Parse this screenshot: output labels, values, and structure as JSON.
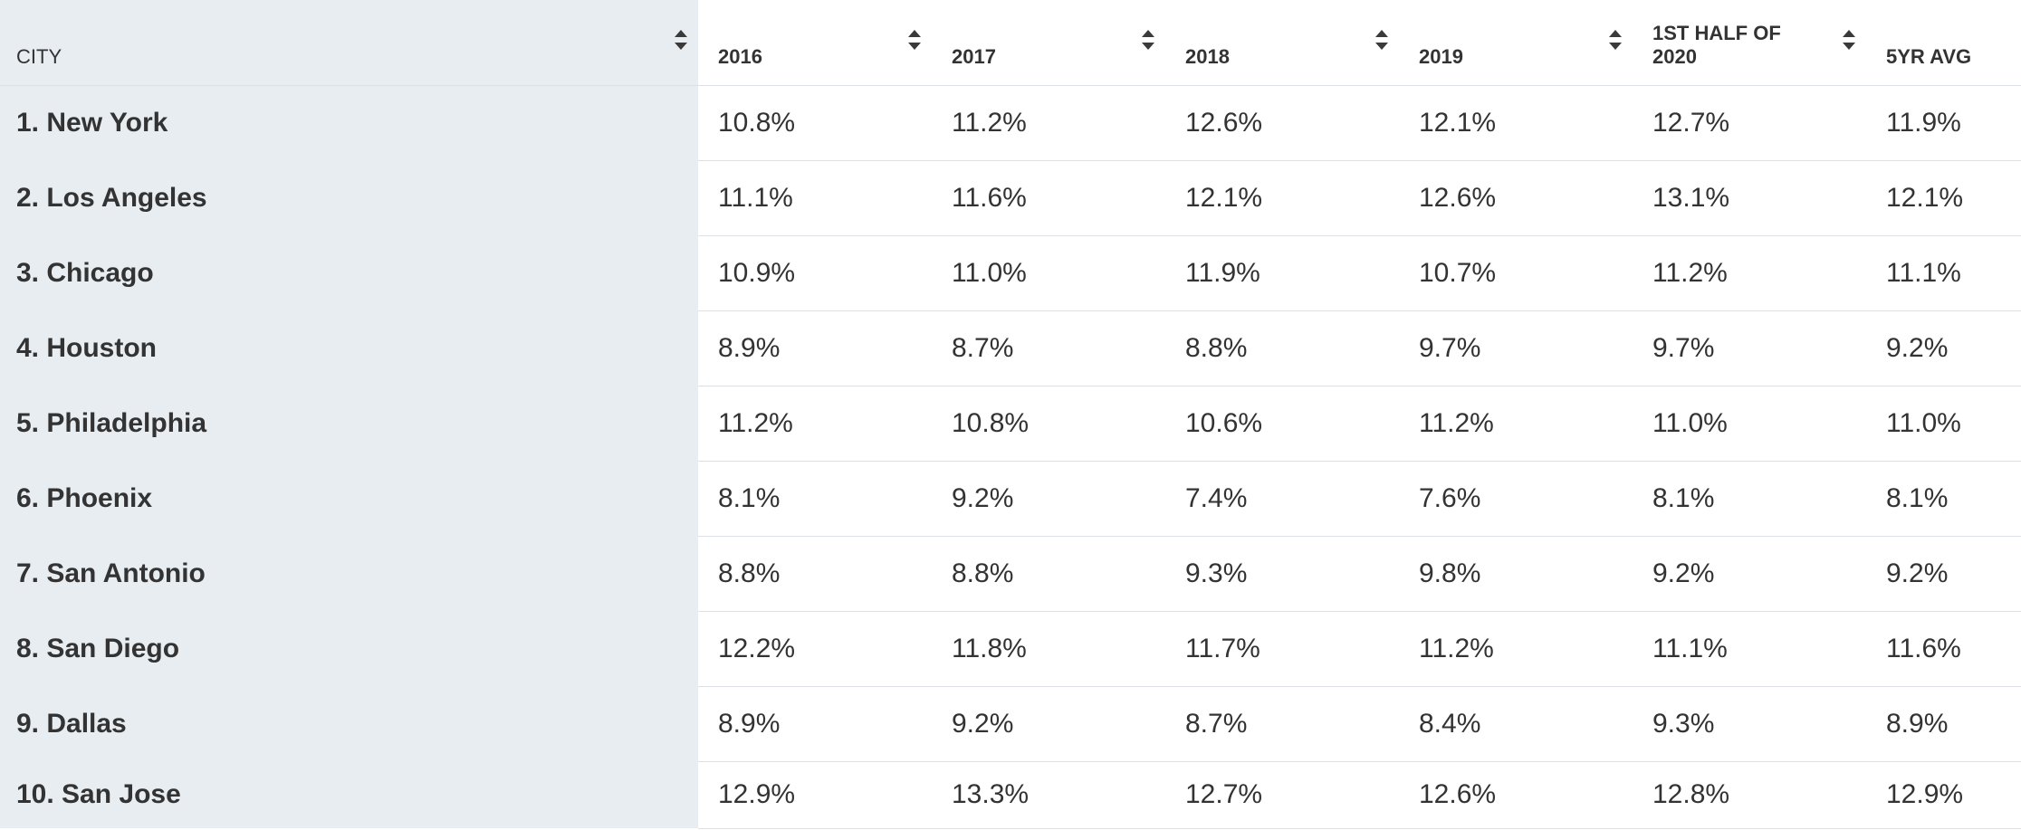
{
  "table": {
    "headers": [
      "CITY",
      "2016",
      "2017",
      "2018",
      "2019",
      "1ST HALF OF 2020",
      "5YR AVG"
    ],
    "rows": [
      {
        "city": "1. New York",
        "values": [
          "10.8%",
          "11.2%",
          "12.6%",
          "12.1%",
          "12.7%",
          "11.9%"
        ]
      },
      {
        "city": "2. Los Angeles",
        "values": [
          "11.1%",
          "11.6%",
          "12.1%",
          "12.6%",
          "13.1%",
          "12.1%"
        ]
      },
      {
        "city": "3. Chicago",
        "values": [
          "10.9%",
          "11.0%",
          "11.9%",
          "10.7%",
          "11.2%",
          "11.1%"
        ]
      },
      {
        "city": "4. Houston",
        "values": [
          "8.9%",
          "8.7%",
          "8.8%",
          "9.7%",
          "9.7%",
          "9.2%"
        ]
      },
      {
        "city": "5. Philadelphia",
        "values": [
          "11.2%",
          "10.8%",
          "10.6%",
          "11.2%",
          "11.0%",
          "11.0%"
        ]
      },
      {
        "city": "6. Phoenix",
        "values": [
          "8.1%",
          "9.2%",
          "7.4%",
          "7.6%",
          "8.1%",
          "8.1%"
        ]
      },
      {
        "city": "7. San Antonio",
        "values": [
          "8.8%",
          "8.8%",
          "9.3%",
          "9.8%",
          "9.2%",
          "9.2%"
        ]
      },
      {
        "city": "8. San Diego",
        "values": [
          "12.2%",
          "11.8%",
          "11.7%",
          "11.2%",
          "11.1%",
          "11.6%"
        ]
      },
      {
        "city": "9. Dallas",
        "values": [
          "8.9%",
          "9.2%",
          "8.7%",
          "8.4%",
          "9.3%",
          "8.9%"
        ]
      },
      {
        "city": "10. San Jose",
        "values": [
          "12.9%",
          "13.3%",
          "12.7%",
          "12.6%",
          "12.8%",
          "12.9%"
        ]
      }
    ]
  },
  "icons": {
    "sort": "sort-arrows-icon"
  },
  "colors": {
    "frozen_column_bg": "#e8edf1",
    "text": "#333333",
    "row_divider": "#dde1e6"
  }
}
